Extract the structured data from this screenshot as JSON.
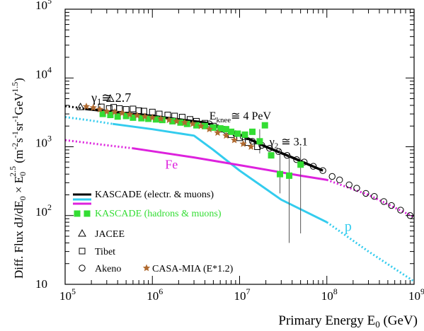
{
  "chart_data": {
    "type": "scatter",
    "xscale": "log",
    "yscale": "log",
    "xlim": [
      100000,
      1000000000
    ],
    "ylim": [
      10,
      100000
    ],
    "grid": false,
    "x_ticks": [
      {
        "value": 100000,
        "base": "10",
        "exp": "5"
      },
      {
        "value": 1000000,
        "base": "10",
        "exp": "6"
      },
      {
        "value": 10000000,
        "base": "10",
        "exp": "7"
      },
      {
        "value": 100000000,
        "base": "10",
        "exp": "8"
      },
      {
        "value": 1000000000,
        "base": "10",
        "exp": "9"
      }
    ],
    "y_ticks": [
      {
        "value": 10,
        "base": "10",
        "exp": ""
      },
      {
        "value": 100,
        "base": "10",
        "exp": "2"
      },
      {
        "value": 1000,
        "base": "10",
        "exp": "3"
      },
      {
        "value": 10000,
        "base": "10",
        "exp": "4"
      },
      {
        "value": 100000,
        "base": "10",
        "exp": "5"
      }
    ],
    "xlabel": {
      "prefix": "Primary Energy  E",
      "sub": "0",
      "suffix": " (GeV)"
    },
    "ylabel": {
      "prefix": "Diff. Flux  dJ/dE",
      "sub1": "0",
      "mid": " × E",
      "sub2": "0",
      "sup2": "2.5",
      "units_open": "   (m",
      "u1": "-2",
      "s": "s",
      "u2": "-1",
      "sr": "sr",
      "u3": "-1",
      "gev": "GeV",
      "u4": "1.5",
      "units_close": ")"
    },
    "annotations": {
      "gamma1": {
        "base": "γ",
        "sub": "1",
        "rest": "≅ 2.7",
        "x": 200000,
        "y": 4500
      },
      "eknee": {
        "base": "E",
        "sub": "knee",
        "rest": "≅ 4 PeV",
        "x": 4500000,
        "y": 2500
      },
      "gamma2": {
        "base": "γ",
        "sub": "2",
        "rest": " ≅ 3.1",
        "x": 22000000,
        "y": 1050
      },
      "fe": {
        "text": "Fe",
        "x": 1400000,
        "y": 480,
        "color": "#dd22dd"
      },
      "p": {
        "text": "p",
        "x": 160000000,
        "y": 60,
        "color": "#33ccee"
      }
    },
    "colors": {
      "kascade_em": "#000000",
      "proton": "#33ccee",
      "iron": "#dd22dd",
      "hadrons": "#33dd33",
      "casa": "#b06a30",
      "open_markers": "#000000"
    },
    "legend": {
      "position": "bottom-left",
      "entries": [
        {
          "id": "kascade-em",
          "label": "KASCADE (electr. & muons)",
          "color": "#000000"
        },
        {
          "id": "kascade-hadrons",
          "label": "KASCADE (hadrons & muons)",
          "color": "#33dd33"
        },
        {
          "id": "jacee",
          "label": "JACEE",
          "color": "#000000"
        },
        {
          "id": "tibet",
          "label": "Tibet",
          "color": "#000000"
        },
        {
          "id": "akeno",
          "label": "Akeno",
          "color": "#000000"
        },
        {
          "id": "casa-mia",
          "label": "CASA-MIA (E*1.2)",
          "color": "#000000"
        }
      ]
    },
    "series": [
      {
        "name": "KASCADE (electr. & muons)",
        "marker": "line",
        "color": "#000000",
        "dotted_part": [
          [
            100000,
            3900
          ],
          [
            140000,
            3700
          ],
          [
            170000,
            3550
          ]
        ],
        "solid_part": [
          [
            170000,
            3550
          ],
          [
            300000,
            3300
          ],
          [
            600000,
            3000
          ],
          [
            1000000,
            2800
          ],
          [
            2000000,
            2500
          ],
          [
            4000000,
            2250
          ],
          [
            6000000,
            1900
          ],
          [
            10000000,
            1500
          ],
          [
            20000000,
            1000
          ],
          [
            40000000,
            700
          ],
          [
            60000000,
            560
          ],
          [
            90000000,
            450
          ]
        ]
      },
      {
        "name": "p",
        "marker": "line",
        "color": "#33ccee",
        "dotted_part": [
          [
            100000,
            2700
          ],
          [
            200000,
            2400
          ],
          [
            350000,
            2150
          ]
        ],
        "solid_part": [
          [
            350000,
            2150
          ],
          [
            1000000,
            1800
          ],
          [
            3000000,
            1450
          ],
          [
            5000000,
            900
          ],
          [
            10000000,
            450
          ],
          [
            30000000,
            170
          ],
          [
            100000000,
            80
          ]
        ],
        "dotted_tail": [
          [
            100000000,
            80
          ],
          [
            300000000,
            30
          ],
          [
            1000000000,
            11
          ]
        ]
      },
      {
        "name": "Fe",
        "marker": "line",
        "color": "#dd22dd",
        "dotted_part": [
          [
            100000,
            1250
          ],
          [
            300000,
            1050
          ],
          [
            600000,
            950
          ]
        ],
        "solid_part": [
          [
            600000,
            950
          ],
          [
            3000000,
            700
          ],
          [
            10000000,
            540
          ],
          [
            50000000,
            380
          ],
          [
            100000000,
            330
          ]
        ],
        "dotted_tail": [
          [
            100000000,
            330
          ],
          [
            300000000,
            200
          ],
          [
            1000000000,
            95
          ]
        ]
      },
      {
        "name": "KASCADE (hadrons & muons)",
        "marker": "square-filled",
        "color": "#33dd33",
        "points": [
          [
            270000,
            3000
          ],
          [
            330000,
            2900
          ],
          [
            400000,
            2750
          ],
          [
            500000,
            2800
          ],
          [
            600000,
            2650
          ],
          [
            750000,
            2600
          ],
          [
            900000,
            2550
          ],
          [
            1100000,
            2500
          ],
          [
            1300000,
            2450
          ],
          [
            1700000,
            2350
          ],
          [
            2100000,
            2250
          ],
          [
            2500000,
            2150
          ],
          [
            3200000,
            2050
          ],
          [
            4000000,
            2000
          ],
          [
            5000000,
            1900
          ],
          [
            6000000,
            1850
          ],
          [
            7000000,
            1800
          ],
          [
            8000000,
            1650
          ],
          [
            9500000,
            1550
          ],
          [
            11500000,
            1500
          ],
          [
            14000000,
            1650
          ],
          [
            17000000,
            1200
          ],
          [
            19500000,
            2050
          ],
          [
            23000000,
            750
          ],
          [
            29000000,
            400
          ],
          [
            37000000,
            380
          ],
          [
            50000000,
            550
          ]
        ],
        "error_bars": [
          {
            "x": 29000000,
            "lo": 210,
            "hi": 950
          },
          {
            "x": 37000000,
            "lo": 40,
            "hi": 800
          },
          {
            "x": 50000000,
            "lo": 55,
            "hi": 1000
          },
          {
            "x": 17000000,
            "lo": 800,
            "hi": 1800
          }
        ]
      },
      {
        "name": "JACEE",
        "marker": "triangle-open",
        "color": "#000000",
        "points": [
          [
            150000,
            3800
          ],
          [
            330000,
            5000
          ]
        ]
      },
      {
        "name": "Tibet",
        "marker": "square-open",
        "color": "#000000",
        "points": [
          [
            260000,
            3800
          ],
          [
            320000,
            3600
          ],
          [
            360000,
            3750
          ],
          [
            420000,
            3600
          ],
          [
            500000,
            3500
          ],
          [
            600000,
            3550
          ],
          [
            700000,
            3350
          ],
          [
            800000,
            3300
          ],
          [
            1000000,
            3200
          ],
          [
            1200000,
            3000
          ],
          [
            1500000,
            2900
          ],
          [
            1800000,
            2800
          ],
          [
            2200000,
            2700
          ],
          [
            2700000,
            2500
          ],
          [
            3200000,
            2350
          ],
          [
            4000000,
            2200
          ],
          [
            5000000,
            2000
          ],
          [
            6300000,
            1800
          ],
          [
            8000000,
            1500
          ],
          [
            10000000,
            1350
          ],
          [
            12500000,
            1150
          ],
          [
            16000000,
            1000
          ]
        ]
      },
      {
        "name": "Akeno",
        "marker": "circle-open",
        "color": "#000000",
        "points": [
          [
            4500000,
            2150
          ],
          [
            5500000,
            1900
          ],
          [
            7000000,
            1700
          ],
          [
            9000000,
            1550
          ],
          [
            11000000,
            1400
          ],
          [
            14000000,
            1200
          ],
          [
            18000000,
            1050
          ],
          [
            22000000,
            950
          ],
          [
            28000000,
            850
          ],
          [
            35000000,
            750
          ],
          [
            45000000,
            650
          ],
          [
            55000000,
            600
          ],
          [
            70000000,
            520
          ],
          [
            90000000,
            450
          ],
          [
            115000000,
            370
          ],
          [
            140000000,
            330
          ],
          [
            180000000,
            280
          ],
          [
            220000000,
            250
          ],
          [
            280000000,
            210
          ],
          [
            350000000,
            190
          ],
          [
            450000000,
            160
          ],
          [
            550000000,
            140
          ],
          [
            700000000,
            120
          ],
          [
            900000000,
            100
          ]
        ]
      },
      {
        "name": "CASA-MIA (E*1.2)",
        "marker": "star",
        "color": "#b06a30",
        "points": [
          [
            175000,
            3850
          ],
          [
            210000,
            3700
          ],
          [
            250000,
            3500
          ],
          [
            300000,
            3250
          ],
          [
            370000,
            3200
          ],
          [
            450000,
            3100
          ],
          [
            550000,
            2950
          ],
          [
            670000,
            2850
          ],
          [
            820000,
            2750
          ],
          [
            1000000,
            2650
          ],
          [
            1250000,
            2550
          ],
          [
            1550000,
            2450
          ],
          [
            1900000,
            2350
          ],
          [
            2350000,
            2250
          ],
          [
            2900000,
            2150
          ],
          [
            3600000,
            2000
          ],
          [
            4500000,
            1800
          ],
          [
            5600000,
            1600
          ],
          [
            7000000,
            1450
          ],
          [
            8700000,
            1250
          ],
          [
            11000000,
            1100
          ],
          [
            13500000,
            1000
          ]
        ]
      }
    ]
  }
}
